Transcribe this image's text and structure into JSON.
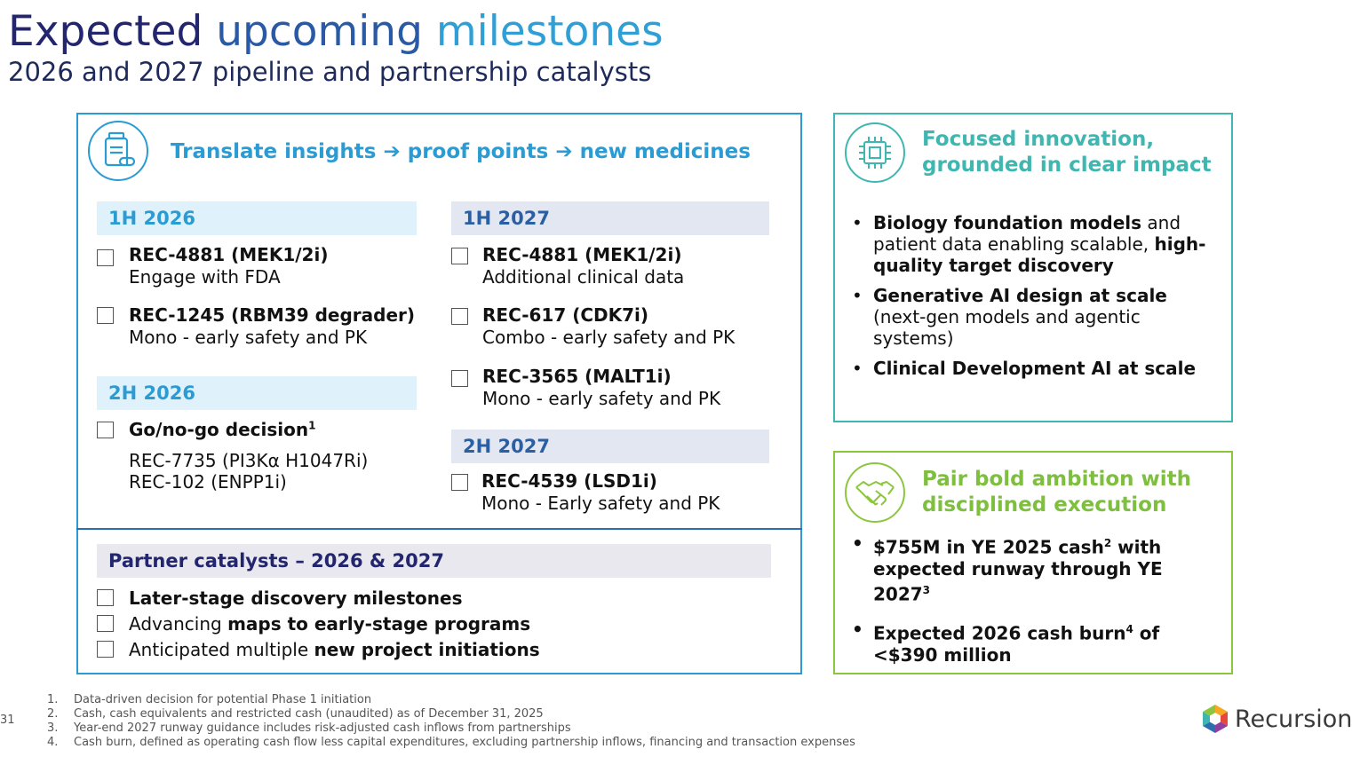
{
  "title": {
    "part1": "Expected",
    "part2": "upcoming",
    "part3": "milestones"
  },
  "subtitle": "2026 and 2027 pipeline and partnership catalysts",
  "main": {
    "header": "Translate insights ➔ proof points ➔ new medicines",
    "icon": "medicine-bottle-icon",
    "h1_2026": {
      "label": "1H 2026",
      "items": [
        {
          "title": "REC-4881 (MEK1/2i)",
          "sub": "Engage with FDA"
        },
        {
          "title": "REC-1245 (RBM39 degrader)",
          "sub": "Mono - early safety and PK"
        }
      ]
    },
    "h2_2026": {
      "label": "2H 2026",
      "items": [
        {
          "title": "Go/no-go decision",
          "sup": "1",
          "sub1": "REC-7735 (PI3Kα H1047Ri)",
          "sub2": "REC-102 (ENPP1i)"
        }
      ]
    },
    "h1_2027": {
      "label": "1H 2027",
      "items": [
        {
          "title": "REC-4881 (MEK1/2i)",
          "sub": "Additional clinical data"
        },
        {
          "title": "REC-617 (CDK7i)",
          "sub": "Combo - early safety and PK"
        },
        {
          "title": "REC-3565 (MALT1i)",
          "sub": "Mono - early safety and PK"
        }
      ]
    },
    "h2_2027": {
      "label": "2H 2027",
      "items": [
        {
          "title": "REC-4539 (LSD1i)",
          "sub": "Mono - Early safety and PK"
        }
      ]
    },
    "partner": {
      "label": "Partner catalysts – 2026 & 2027",
      "line1": "Later-stage discovery milestones",
      "line2_plain": "Advancing ",
      "line2_bold": "maps to early-stage programs",
      "line3_plain": "Anticipated multiple ",
      "line3_bold": "new project initiations"
    }
  },
  "innovation": {
    "icon": "chip-icon",
    "header_line1": "Focused innovation,",
    "header_line2": "grounded in clear impact",
    "b1_bold1": "Biology foundation models",
    "b1_plain": " and patient data enabling scalable, ",
    "b1_bold2": "high-quality target discovery",
    "b2_bold": "Generative AI design at scale",
    "b2_plain": " (next-gen models and agentic systems)",
    "b3_bold": "Clinical Development AI at scale"
  },
  "ambition": {
    "icon": "handshake-icon",
    "header_line1": "Pair bold ambition with",
    "header_line2": "disciplined execution",
    "b1_part1": "$755M in YE 2025 cash",
    "b1_sup1": "2",
    "b1_part2": " with expected runway through YE 2027",
    "b1_sup2": "3",
    "b2_part1": "Expected 2026 cash burn",
    "b2_sup": "4",
    "b2_part2": " of <$390 million"
  },
  "footnotes": [
    {
      "n": "1.",
      "text": "Data-driven decision for potential Phase 1 initiation"
    },
    {
      "n": "2.",
      "text": "Cash, cash equivalents and restricted cash (unaudited) as of December 31, 2025"
    },
    {
      "n": "3.",
      "text": "Year-end 2027 runway guidance includes risk-adjusted cash inflows from partnerships"
    },
    {
      "n": "4.",
      "text": "Cash burn, defined as operating cash flow less capital expenditures, excluding partnership inflows, financing and transaction expenses"
    }
  ],
  "page_number": "31",
  "logo": {
    "text": "Recursion",
    "mark": "®",
    "icon": "recursion-hexagon-icon"
  }
}
